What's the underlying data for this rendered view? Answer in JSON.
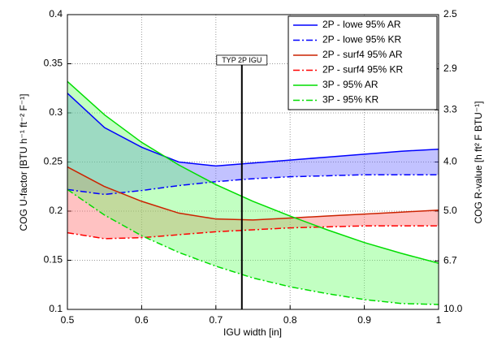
{
  "chart_data": {
    "type": "line",
    "x_label": "IGU width [in]",
    "y_label": "COG U-factor [BTU h⁻¹ ft⁻² F⁻¹]",
    "y2_label": "COG R-value [h ft² F BTU⁻¹]",
    "x": [
      0.5,
      0.55,
      0.6,
      0.65,
      0.7,
      0.75,
      0.8,
      0.85,
      0.9,
      0.95,
      1.0
    ],
    "series": [
      {
        "name": "2P - lowe 95% AR",
        "color": "#0000ff",
        "style": "solid",
        "values": [
          0.32,
          0.285,
          0.265,
          0.25,
          0.246,
          0.249,
          0.252,
          0.255,
          0.258,
          0.261,
          0.263
        ]
      },
      {
        "name": "2P - lowe 95% KR",
        "color": "#0000ff",
        "style": "dashdot",
        "values": [
          0.222,
          0.217,
          0.221,
          0.226,
          0.23,
          0.233,
          0.235,
          0.236,
          0.237,
          0.237,
          0.237
        ]
      },
      {
        "name": "2P - surf4 95% AR",
        "color": "#cc2200",
        "style": "solid",
        "values": [
          0.245,
          0.225,
          0.21,
          0.198,
          0.192,
          0.191,
          0.193,
          0.195,
          0.197,
          0.199,
          0.201
        ]
      },
      {
        "name": "2P - surf4 95% KR",
        "color": "#ff0000",
        "style": "dashdot",
        "values": [
          0.178,
          0.172,
          0.173,
          0.176,
          0.179,
          0.181,
          0.183,
          0.184,
          0.185,
          0.185,
          0.185
        ]
      },
      {
        "name": "3P - 95% AR",
        "color": "#00dd00",
        "style": "solid",
        "values": [
          0.332,
          0.298,
          0.27,
          0.247,
          0.227,
          0.21,
          0.195,
          0.181,
          0.168,
          0.157,
          0.147
        ]
      },
      {
        "name": "3P - 95% KR",
        "color": "#00dd00",
        "style": "dashdot",
        "values": [
          0.222,
          0.196,
          0.175,
          0.158,
          0.144,
          0.132,
          0.123,
          0.116,
          0.11,
          0.106,
          0.105
        ]
      }
    ],
    "fills": [
      {
        "between": [
          0,
          1
        ],
        "color": "#6666ff"
      },
      {
        "between": [
          2,
          3
        ],
        "color": "#ff6666"
      },
      {
        "between": [
          4,
          5
        ],
        "color": "#66ff66"
      }
    ],
    "xlim": [
      0.5,
      1
    ],
    "xticks": [
      0.5,
      0.6,
      0.7,
      0.8,
      0.9,
      1
    ],
    "ylim": [
      0.1,
      0.4
    ],
    "yticks": [
      0.1,
      0.15,
      0.2,
      0.25,
      0.3,
      0.35,
      0.4
    ],
    "y2_scale": "reciprocal",
    "y2lim": [
      10,
      2.5
    ],
    "y2ticks": [
      {
        "value": 10,
        "label": "10.0"
      },
      6.7,
      {
        "value": 5,
        "label": "5.0"
      },
      {
        "value": 4,
        "label": "4.0"
      },
      3.3,
      2.9,
      2.5
    ],
    "grid": true,
    "legend": "upper right",
    "annotation": {
      "text": "TYP 2P IGU",
      "x": 0.735
    }
  }
}
